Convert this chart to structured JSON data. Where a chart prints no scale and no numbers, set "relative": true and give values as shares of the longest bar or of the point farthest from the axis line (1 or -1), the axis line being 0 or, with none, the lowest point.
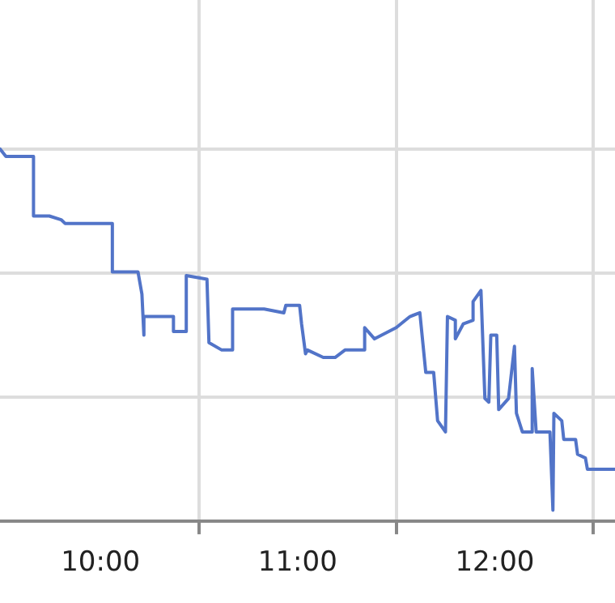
{
  "chart_data": {
    "type": "line",
    "relative": true,
    "grid": true,
    "legend": false,
    "marker": "none",
    "line_style": "solid",
    "xlim": [
      9.49,
      12.61
    ],
    "xticks": [
      {
        "value": 10,
        "label": "10:00"
      },
      {
        "value": 10.5,
        "label": null
      },
      {
        "value": 11,
        "label": "11:00"
      },
      {
        "value": 11.5,
        "label": null
      },
      {
        "value": 12,
        "label": "12:00"
      },
      {
        "value": 12.5,
        "label": null
      }
    ],
    "tick_labels": "x",
    "series": [
      {
        "color": "#5274c8",
        "x": [
          9.49,
          9.52,
          9.57,
          9.63,
          9.66,
          9.66,
          9.74,
          9.8,
          9.82,
          10.06,
          10.06,
          10.19,
          10.21,
          10.22,
          10.22,
          10.37,
          10.37,
          10.435,
          10.435,
          10.54,
          10.55,
          10.615,
          10.67,
          10.67,
          10.83,
          10.93,
          10.94,
          11.01,
          11.02,
          11.04,
          11.05,
          11.13,
          11.19,
          11.24,
          11.34,
          11.34,
          11.39,
          11.5,
          11.57,
          11.62,
          11.65,
          11.69,
          11.71,
          11.75,
          11.76,
          11.8,
          11.8,
          11.84,
          11.89,
          11.89,
          11.93,
          11.95,
          11.97,
          11.98,
          12.01,
          12.02,
          12.07,
          12.1,
          12.11,
          12.14,
          12.19,
          12.19,
          12.21,
          12.28,
          12.295,
          12.3,
          12.34,
          12.35,
          12.41,
          12.42,
          12.46,
          12.47,
          12.61
        ],
        "values": [
          1.0,
          0.98,
          0.98,
          0.98,
          0.98,
          0.82,
          0.82,
          0.81,
          0.8,
          0.8,
          0.67,
          0.67,
          0.61,
          0.5,
          0.55,
          0.55,
          0.51,
          0.51,
          0.66,
          0.65,
          0.48,
          0.46,
          0.46,
          0.57,
          0.57,
          0.56,
          0.58,
          0.58,
          0.53,
          0.45,
          0.46,
          0.44,
          0.44,
          0.46,
          0.46,
          0.52,
          0.49,
          0.52,
          0.55,
          0.56,
          0.4,
          0.4,
          0.27,
          0.24,
          0.55,
          0.54,
          0.49,
          0.53,
          0.54,
          0.59,
          0.62,
          0.33,
          0.32,
          0.5,
          0.5,
          0.3,
          0.33,
          0.47,
          0.29,
          0.24,
          0.24,
          0.41,
          0.24,
          0.24,
          0.03,
          0.29,
          0.27,
          0.22,
          0.22,
          0.18,
          0.17,
          0.14,
          0.14
        ]
      }
    ]
  }
}
